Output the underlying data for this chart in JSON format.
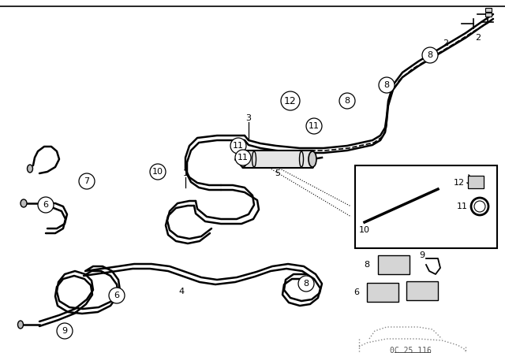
{
  "bg_color": "#ffffff",
  "line_color": "#000000",
  "fig_width": 6.4,
  "fig_height": 4.48,
  "dpi": 100,
  "watermark": "0C 25 116"
}
